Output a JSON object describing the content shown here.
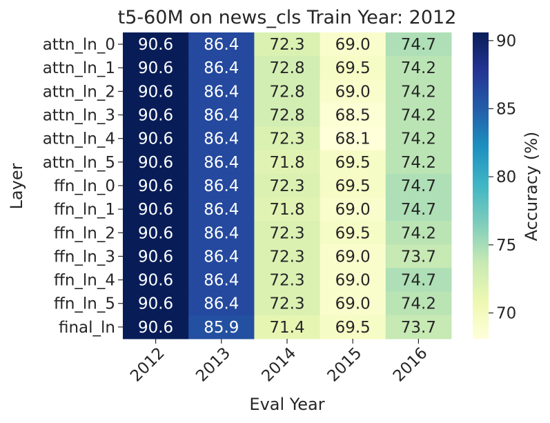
{
  "chart_data": {
    "type": "heatmap",
    "title": "t5-60M on news_cls Train Year: 2012",
    "xlabel": "Eval Year",
    "ylabel": "Layer",
    "colorbar_label": "Accuracy (%)",
    "colormap": "YlGnBu",
    "vmin": 68.1,
    "vmax": 90.6,
    "colorbar_ticks": [
      70,
      75,
      80,
      85,
      90
    ],
    "x_categories": [
      "2012",
      "2013",
      "2014",
      "2015",
      "2016"
    ],
    "y_categories": [
      "attn_ln_0",
      "attn_ln_1",
      "attn_ln_2",
      "attn_ln_3",
      "attn_ln_4",
      "attn_ln_5",
      "ffn_ln_0",
      "ffn_ln_1",
      "ffn_ln_2",
      "ffn_ln_3",
      "ffn_ln_4",
      "ffn_ln_5",
      "final_ln"
    ],
    "values": [
      [
        90.6,
        86.4,
        72.3,
        69.0,
        74.7
      ],
      [
        90.6,
        86.4,
        72.8,
        69.5,
        74.2
      ],
      [
        90.6,
        86.4,
        72.8,
        69.0,
        74.2
      ],
      [
        90.6,
        86.4,
        72.8,
        68.5,
        74.2
      ],
      [
        90.6,
        86.4,
        72.3,
        68.1,
        74.2
      ],
      [
        90.6,
        86.4,
        71.8,
        69.5,
        74.2
      ],
      [
        90.6,
        86.4,
        72.3,
        69.5,
        74.7
      ],
      [
        90.6,
        86.4,
        71.8,
        69.0,
        74.7
      ],
      [
        90.6,
        86.4,
        72.3,
        69.5,
        74.2
      ],
      [
        90.6,
        86.4,
        72.3,
        69.0,
        73.7
      ],
      [
        90.6,
        86.4,
        72.3,
        69.0,
        74.7
      ],
      [
        90.6,
        86.4,
        72.3,
        69.0,
        74.2
      ],
      [
        90.6,
        85.9,
        71.4,
        69.5,
        73.7
      ]
    ],
    "annotations": "values shown in each cell with one decimal"
  }
}
